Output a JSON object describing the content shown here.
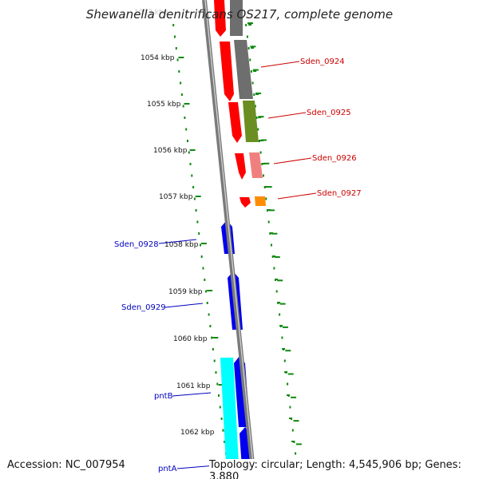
{
  "title": "Shewanella denitrificans OS217, complete genome",
  "faded_top_label": "1053 kbp",
  "footer": {
    "accession_label": "Accession:",
    "accession": "NC_007954",
    "topology_label": "Topology:",
    "topology": "circular",
    "length_label": "Length:",
    "length": "4,545,906 bp",
    "genes_label": "Genes:",
    "genes": "3,880"
  },
  "ruler_ticks": [
    "1054 kbp",
    "1055 kbp",
    "1056 kbp",
    "1057 kbp",
    "1058 kbp",
    "1059 kbp",
    "1060 kbp",
    "1061 kbp",
    "1062 kbp"
  ],
  "colors": {
    "backbone": "#8a8a8a",
    "ruler": "#118811",
    "red": "#ff0000",
    "gray": "#6e6e6e",
    "olive": "#6b8e23",
    "pink": "#f08080",
    "orange": "#ff8c00",
    "blue": "#0000ee",
    "cyan": "#00ffff",
    "label_red": "#cc0000",
    "label_blue": "#0000bb"
  },
  "gene_labels_right": [
    "Sden_0924",
    "Sden_0925",
    "Sden_0926",
    "Sden_0927"
  ],
  "gene_labels_left": [
    "Sden_0928",
    "Sden_0929",
    "pntB",
    "pntA"
  ]
}
